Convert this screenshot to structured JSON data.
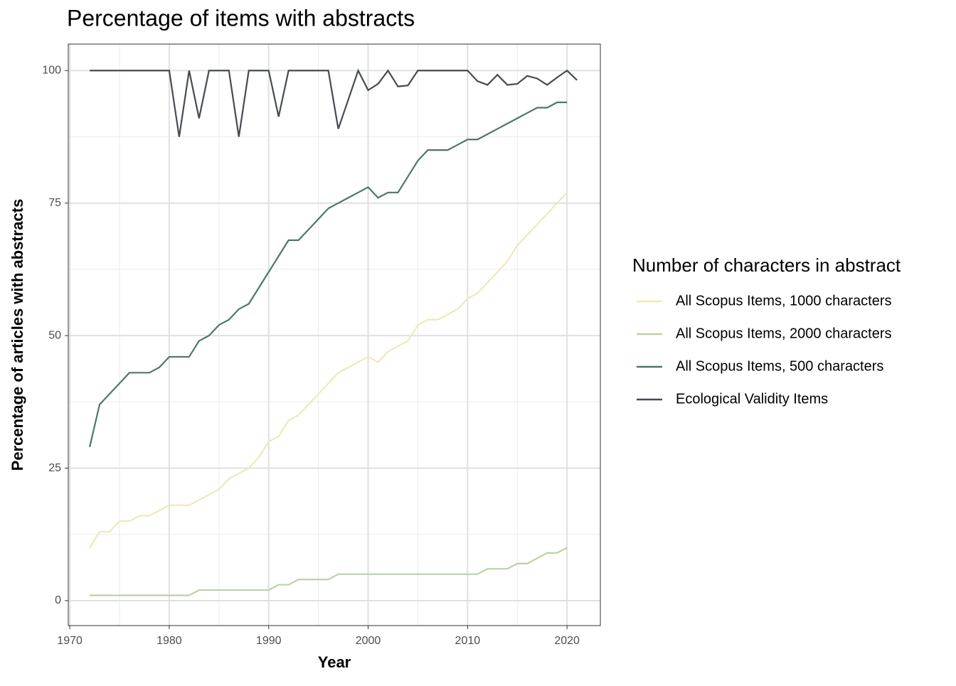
{
  "chart_data": {
    "type": "line",
    "title": "Percentage of items with abstracts",
    "x_label": "Year",
    "y_label": "Percentage of articles with abstracts",
    "legend_title": "Number of characters in abstract",
    "legend_position": "right",
    "grid": true,
    "minor_grid": true,
    "xlim": [
      1969.85,
      2023.35
    ],
    "xticks": [
      1970,
      1980,
      1990,
      2000,
      2010,
      2020
    ],
    "ylim": [
      -4.7,
      105
    ],
    "yticks": [
      0,
      25,
      50,
      75,
      100
    ],
    "x": [
      1972,
      1973,
      1974,
      1975,
      1976,
      1977,
      1978,
      1979,
      1980,
      1981,
      1982,
      1983,
      1984,
      1985,
      1986,
      1987,
      1988,
      1989,
      1990,
      1991,
      1992,
      1993,
      1994,
      1995,
      1996,
      1997,
      1998,
      1999,
      2000,
      2001,
      2002,
      2003,
      2004,
      2005,
      2006,
      2007,
      2008,
      2009,
      2010,
      2011,
      2012,
      2013,
      2014,
      2015,
      2016,
      2017,
      2018,
      2019,
      2020,
      2021
    ],
    "series": [
      {
        "name": "All Scopus Items, 1000 characters",
        "color": "#eeeab8",
        "values": [
          10,
          13,
          13,
          15,
          15,
          16,
          16,
          17,
          18,
          18,
          18,
          19,
          20,
          21,
          23,
          24,
          25,
          27,
          30,
          31,
          34,
          35,
          37,
          39,
          41,
          43,
          44,
          45,
          46,
          45,
          47,
          48,
          49,
          52,
          53,
          53,
          54,
          55,
          57,
          58,
          60,
          62,
          64,
          67,
          69,
          71,
          73,
          75,
          77,
          null
        ]
      },
      {
        "name": "All Scopus Items, 2000 characters",
        "color": "#bcd2a4",
        "values": [
          1,
          1,
          1,
          1,
          1,
          1,
          1,
          1,
          1,
          1,
          1,
          2,
          2,
          2,
          2,
          2,
          2,
          2,
          2,
          3,
          3,
          4,
          4,
          4,
          4,
          5,
          5,
          5,
          5,
          5,
          5,
          5,
          5,
          5,
          5,
          5,
          5,
          5,
          5,
          5,
          6,
          6,
          6,
          7,
          7,
          8,
          9,
          9,
          10,
          null
        ]
      },
      {
        "name": "All Scopus Items, 500 characters",
        "color": "#4b7868",
        "values": [
          29,
          37,
          39,
          41,
          43,
          43,
          43,
          44,
          46,
          46,
          46,
          49,
          50,
          52,
          53,
          55,
          56,
          59,
          62,
          65,
          68,
          68,
          70,
          72,
          74,
          75,
          76,
          77,
          78,
          76,
          77,
          77,
          80,
          83,
          85,
          85,
          85,
          86,
          87,
          87,
          88,
          89,
          90,
          91,
          92,
          93,
          93,
          94,
          94,
          null
        ]
      },
      {
        "name": "Ecological Validity Items",
        "color": "#454c52",
        "values": [
          100,
          100,
          100,
          100,
          100,
          100,
          100,
          100,
          100,
          87.5,
          100,
          91,
          100,
          100,
          100,
          87.5,
          100,
          100,
          100,
          91.3,
          100,
          100,
          100,
          100,
          100,
          89,
          94.5,
          100,
          96.3,
          97.5,
          100,
          97,
          97.2,
          100,
          100,
          100,
          100,
          100,
          100,
          98,
          97.3,
          99.2,
          97.3,
          97.5,
          99,
          98.5,
          97.3,
          98.7,
          100,
          98.2
        ]
      }
    ]
  }
}
